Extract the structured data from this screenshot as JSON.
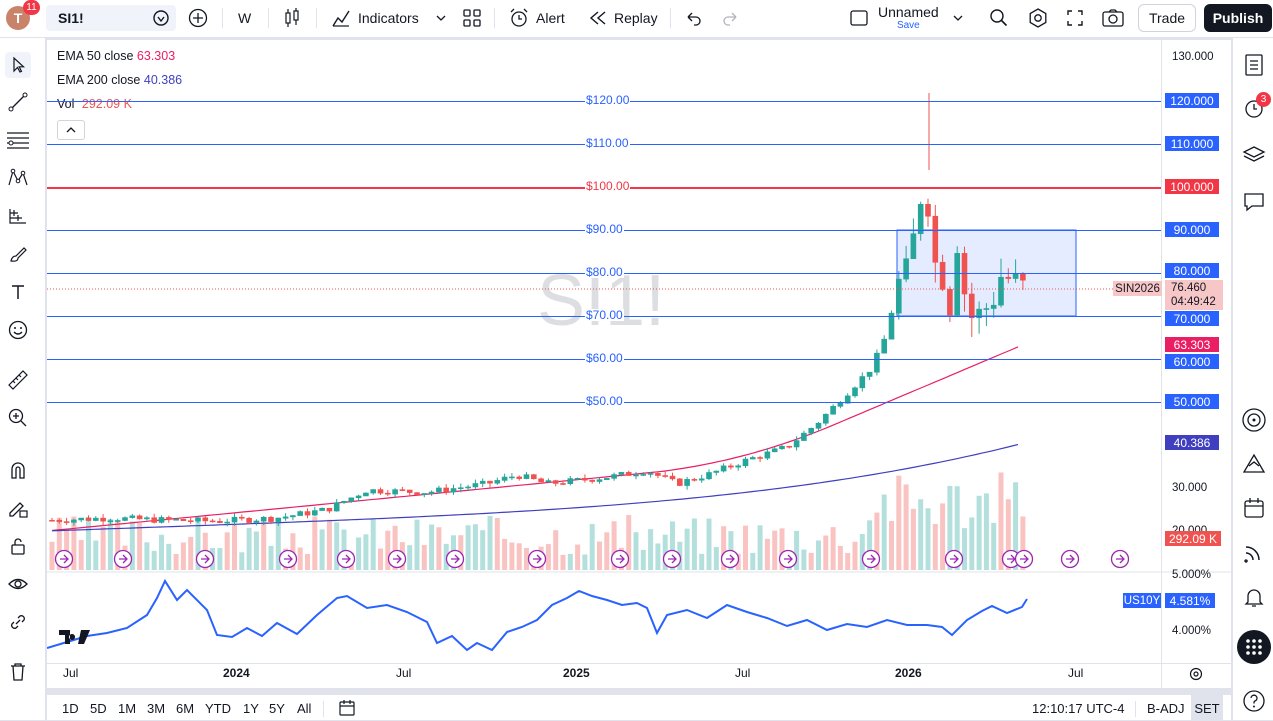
{
  "topbar": {
    "avatar": "T",
    "badge": "11",
    "symbol": "SI1!",
    "interval": "W",
    "indicators": "Indicators",
    "alert": "Alert",
    "replay": "Replay",
    "layout_name": "Unnamed",
    "save": "Save",
    "trade": "Trade",
    "publish": "Publish"
  },
  "legend": {
    "ema50_label": "EMA 50 close",
    "ema50_val": "63.303",
    "ema200_label": "EMA 200 close",
    "ema200_val": "40.386",
    "vol_label": "Vol",
    "vol_val": "292.09 K"
  },
  "watermark": "SI1!",
  "hlines": [
    {
      "label": "$120.00",
      "color": "#2962ff"
    },
    {
      "label": "$110.00",
      "color": "#2962ff"
    },
    {
      "label": "$100.00",
      "color": "#f23645"
    },
    {
      "label": "$90.00",
      "color": "#2962ff"
    },
    {
      "label": "$80.00",
      "color": "#2962ff"
    },
    {
      "label": "$70.00",
      "color": "#2962ff"
    },
    {
      "label": "$60.00",
      "color": "#2962ff"
    },
    {
      "label": "$50.00",
      "color": "#2962ff"
    }
  ],
  "price_axis": {
    "t130": "130.000",
    "t30": "30.000",
    "t20": "20.000",
    "p120": "120.000",
    "p110": "110.000",
    "p100": "100.000",
    "p90": "90.000",
    "p80": "80.000",
    "p70": "70.000",
    "p60": "60.000",
    "p50": "50.000",
    "sym": "SIN2026",
    "last": "76.460",
    "countdown": "04:49:42",
    "ema50": "63.303",
    "ema200": "40.386",
    "vol": "292.09 K"
  },
  "sub_axis": {
    "t5": "5.000%",
    "t4": "4.000%",
    "sym": "US10Y",
    "val": "4.581%"
  },
  "time_axis": [
    "Jul",
    "2024",
    "Jul",
    "2025",
    "Jul",
    "2026",
    "Jul"
  ],
  "ranges": [
    "1D",
    "5D",
    "1M",
    "3M",
    "6M",
    "YTD",
    "1Y",
    "5Y",
    "All"
  ],
  "clock": "12:10:17 UTC-4",
  "badj": "B-ADJ",
  "set": "SET",
  "right_badge": "3",
  "colors": {
    "up": "#26a69a",
    "down": "#ef5350",
    "ema50": "#e91e63",
    "ema200": "#3f3fbf",
    "blue": "#2962ff",
    "red": "#f23645"
  }
}
